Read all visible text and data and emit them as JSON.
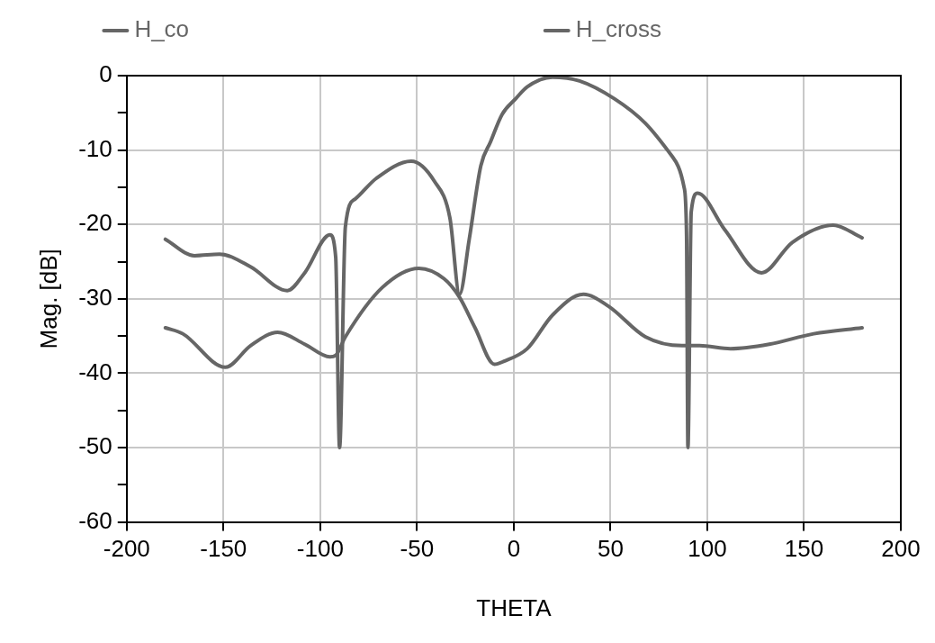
{
  "chart_data": {
    "type": "line",
    "xlabel": "THETA",
    "ylabel": "Mag. [dB]",
    "xlim": [
      -200,
      200
    ],
    "xticks": [
      -200,
      -150,
      -100,
      -50,
      0,
      50,
      100,
      150,
      200
    ],
    "ylim": [
      -60,
      0
    ],
    "yticks": [
      -60,
      {
        "value": -55,
        "label": null
      },
      -50,
      {
        "value": -45,
        "label": null
      },
      -40,
      {
        "value": -35,
        "label": null
      },
      -30,
      {
        "value": -25,
        "label": null
      },
      -20,
      {
        "value": -15,
        "label": null
      },
      -10,
      {
        "value": -5,
        "label": null
      },
      0
    ],
    "grid": true,
    "legend": "top",
    "line_style": "solid",
    "marker": "none",
    "series": [
      {
        "name": "H_co",
        "color": "#666666",
        "x": [
          -180,
          -165,
          -152,
          -136,
          -117,
          -108,
          -95,
          -92,
          -90,
          -87,
          -82,
          -71,
          -53,
          -41,
          -33,
          -28,
          -23,
          -17,
          -12,
          -6,
          1,
          7,
          20,
          34,
          52,
          68,
          82,
          88,
          89.3,
          90,
          91.7,
          95,
          109,
          128,
          144,
          165,
          180
        ],
        "values": [
          -22,
          -24.2,
          -24,
          -25.7,
          -28.9,
          -26.5,
          -21.4,
          -24.4,
          -50,
          -20.3,
          -16.6,
          -13.8,
          -11.5,
          -14.2,
          -19.1,
          -29.4,
          -22,
          -12.1,
          -8.9,
          -5.2,
          -3.1,
          -1.5,
          -0.2,
          -0.7,
          -3.1,
          -6.4,
          -10.9,
          -15,
          -21.6,
          -50,
          -18.3,
          -15.8,
          -20.7,
          -26.5,
          -22.4,
          -20.1,
          -21.8
        ]
      },
      {
        "name": "H_cross",
        "color": "#666666",
        "x": [
          -180,
          -171,
          -149,
          -136,
          -122,
          -108,
          -95,
          -92,
          -87,
          -68,
          -49,
          -36,
          -28,
          -20,
          -10,
          -5,
          7,
          20,
          36,
          49,
          68,
          87,
          96,
          112,
          132,
          155,
          180
        ],
        "values": [
          -33.9,
          -34.7,
          -39.2,
          -36.3,
          -34.5,
          -36.1,
          -37.8,
          -37.6,
          -35.1,
          -28.5,
          -25.9,
          -27.3,
          -29.8,
          -33.9,
          -38.8,
          -38.4,
          -36.7,
          -32.2,
          -29.4,
          -31,
          -35.1,
          -36.3,
          -36.3,
          -36.7,
          -36.1,
          -34.7,
          -33.9
        ]
      }
    ]
  }
}
